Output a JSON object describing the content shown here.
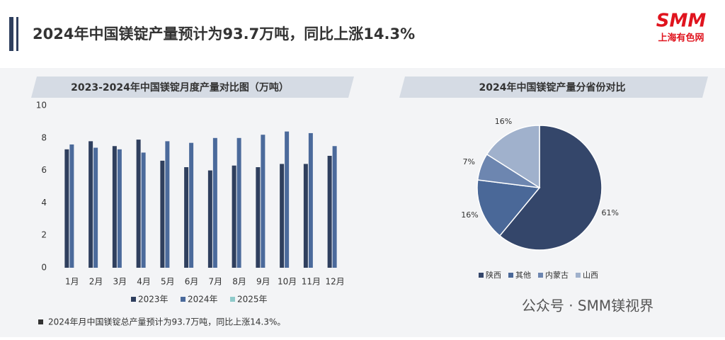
{
  "header": {
    "title": "2024年中国镁锭产量预计为93.7万吨，同比上涨14.3%",
    "logo": "SMM",
    "logo_sub": "上海有色网"
  },
  "chart_data": [
    {
      "type": "bar",
      "title": "2023-2024年中国镁锭月度产量对比图（万吨）",
      "categories": [
        "1月",
        "2月",
        "3月",
        "4月",
        "5月",
        "6月",
        "7月",
        "8月",
        "9月",
        "10月",
        "11月",
        "12月"
      ],
      "series": [
        {
          "name": "2023年",
          "color": "#2f3f5e",
          "values": [
            7.3,
            7.8,
            7.5,
            7.9,
            6.6,
            6.2,
            6.0,
            6.3,
            6.2,
            6.4,
            6.4,
            6.9
          ]
        },
        {
          "name": "2024年",
          "color": "#4b6a9b",
          "values": [
            7.6,
            7.4,
            7.3,
            7.1,
            7.8,
            7.7,
            8.0,
            8.0,
            8.2,
            8.4,
            8.3,
            7.5
          ]
        },
        {
          "name": "2025年",
          "color": "#8fcaca",
          "values": [
            null,
            null,
            null,
            null,
            null,
            null,
            null,
            null,
            null,
            null,
            null,
            null
          ]
        }
      ],
      "ylim": [
        0,
        10
      ],
      "yticks": [
        0,
        2,
        4,
        6,
        8,
        10
      ],
      "grid": false
    },
    {
      "type": "pie",
      "title": "2024年中国镁锭产量分省份对比",
      "categories": [
        "陕西",
        "其他",
        "内蒙古",
        "山西"
      ],
      "values": [
        61,
        16,
        7,
        16
      ],
      "value_labels": [
        "61%",
        "16%",
        "7%",
        "16%"
      ],
      "colors": [
        "#34466a",
        "#4a6898",
        "#6d86b0",
        "#a0b1cc"
      ]
    }
  ],
  "footnote": "2024年月中国镁锭总产量预计为93.7万吨，同比上涨14.3%。",
  "watermark": "公众号 · SMM镁视界"
}
